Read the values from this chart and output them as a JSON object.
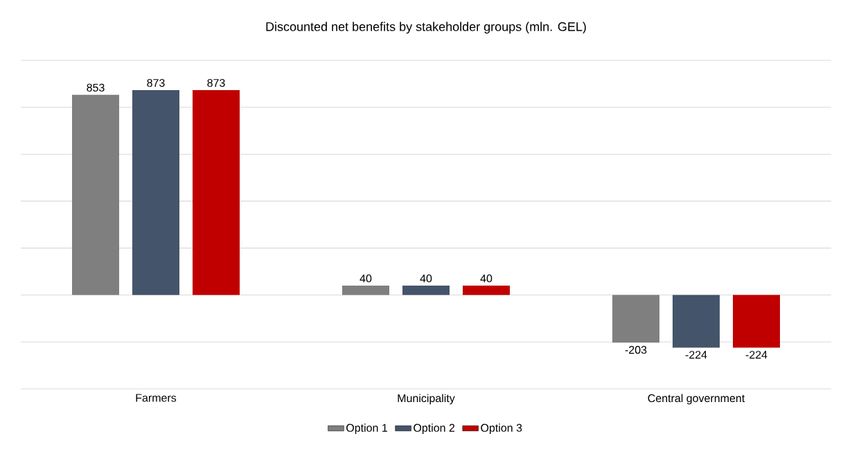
{
  "chart_data": {
    "type": "bar",
    "title": "Discounted net benefits by stakeholder groups (mln. GEL)",
    "categories": [
      "Farmers",
      "Municipality",
      "Central government"
    ],
    "series": [
      {
        "name": "Option 1",
        "color": "#7f7f7f",
        "values": [
          853,
          40,
          -203
        ]
      },
      {
        "name": "Option 2",
        "color": "#44546a",
        "values": [
          873,
          40,
          -224
        ]
      },
      {
        "name": "Option 3",
        "color": "#c00000",
        "values": [
          873,
          40,
          -224
        ]
      }
    ],
    "ylim": [
      -400,
      1000
    ],
    "yticks": [
      {
        "value": -400,
        "label": null
      },
      {
        "value": -200,
        "label": null
      },
      {
        "value": 0,
        "label": null
      },
      {
        "value": 200,
        "label": null
      },
      {
        "value": 400,
        "label": null
      },
      {
        "value": 600,
        "label": null
      },
      {
        "value": 800,
        "label": null
      },
      {
        "value": 1000,
        "label": null
      }
    ],
    "grid": "y",
    "legend": "bottom",
    "data_labels": true
  }
}
